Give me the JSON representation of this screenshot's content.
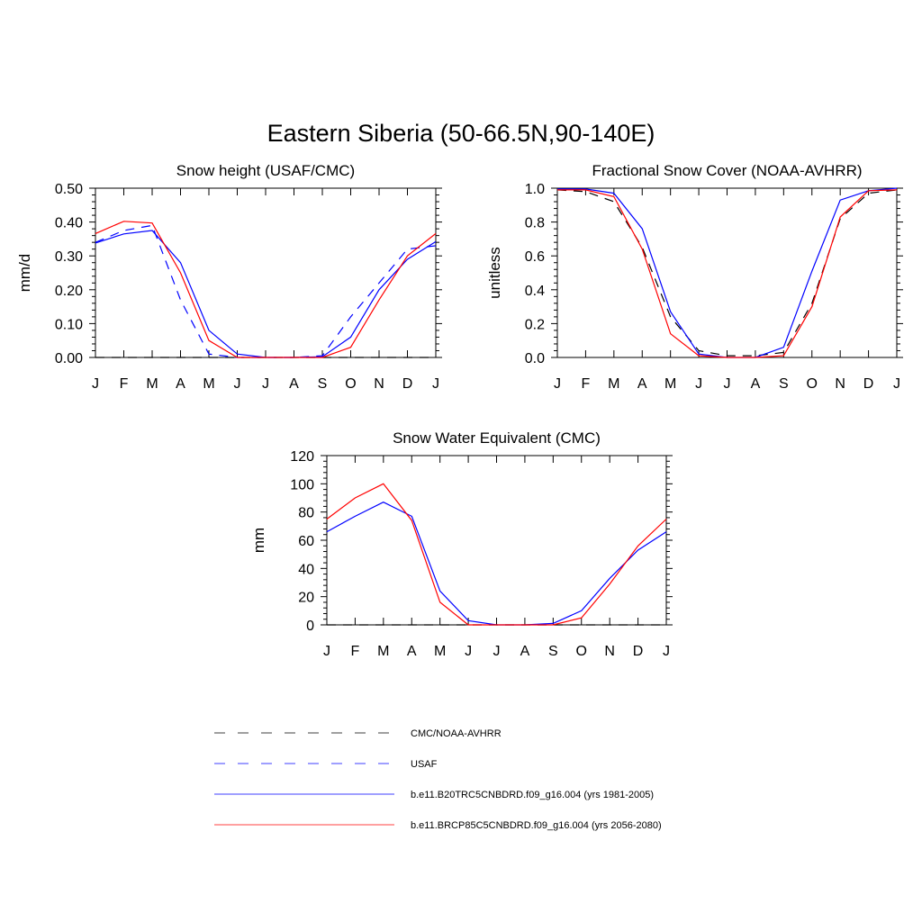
{
  "figure": {
    "title": "Eastern Siberia (50-66.5N,90-140E)"
  },
  "legend": [
    {
      "key": "cmc",
      "label": "CMC/NOAA-AVHRR",
      "color": "#000000",
      "dash": true
    },
    {
      "key": "usaf",
      "label": "USAF",
      "color": "#0000ff",
      "dash": true
    },
    {
      "key": "hist",
      "label": "b.e11.B20TRC5CNBDRD.f09_g16.004 (yrs 1981-2005)",
      "color": "#0000ff",
      "dash": false
    },
    {
      "key": "rcp",
      "label": "b.e11.BRCP85C5CNBDRD.f09_g16.004 (yrs 2056-2080)",
      "color": "#ff0000",
      "dash": false
    }
  ],
  "chart_data": [
    {
      "id": "snow-height",
      "type": "line",
      "title": "Snow height (USAF/CMC)",
      "ylabel": "mm/d",
      "xlabel": "",
      "categories": [
        "J",
        "F",
        "M",
        "A",
        "M",
        "J",
        "J",
        "A",
        "S",
        "O",
        "N",
        "D",
        "J"
      ],
      "ylim": [
        0,
        0.5
      ],
      "yticks": [
        "0.00",
        "0.10",
        "0.20",
        "0.30",
        "0.40",
        "0.50"
      ],
      "grid": false,
      "series": [
        {
          "name": "CMC/NOAA-AVHRR",
          "color": "#000000",
          "dash": true,
          "values": [
            0,
            0,
            0,
            0,
            0,
            0,
            0,
            0,
            0,
            0,
            0,
            0,
            0
          ]
        },
        {
          "name": "USAF",
          "color": "#0000ff",
          "dash": true,
          "values": [
            0.34,
            0.375,
            0.39,
            0.17,
            0.01,
            0,
            0,
            0,
            0.005,
            0.12,
            0.22,
            0.32,
            0.33
          ]
        },
        {
          "name": "b.e11.B20TRC5CNBDRD.f09_g16.004 (yrs 1981-2005)",
          "color": "#0000ff",
          "dash": false,
          "values": [
            0.338,
            0.365,
            0.375,
            0.28,
            0.08,
            0.01,
            0,
            0,
            0.002,
            0.06,
            0.2,
            0.29,
            0.342
          ]
        },
        {
          "name": "b.e11.BRCP85C5CNBDRD.f09_g16.004 (yrs 2056-2080)",
          "color": "#ff0000",
          "dash": false,
          "values": [
            0.366,
            0.402,
            0.397,
            0.25,
            0.05,
            0,
            0,
            0,
            0,
            0.03,
            0.17,
            0.3,
            0.366
          ]
        }
      ]
    },
    {
      "id": "snow-cover",
      "type": "line",
      "title": "Fractional Snow Cover (NOAA-AVHRR)",
      "ylabel": "unitless",
      "xlabel": "",
      "categories": [
        "J",
        "F",
        "M",
        "A",
        "M",
        "J",
        "J",
        "A",
        "S",
        "O",
        "N",
        "D",
        "J"
      ],
      "ylim": [
        0,
        1.0
      ],
      "yticks": [
        "0.0",
        "0.2",
        "0.4",
        "0.6",
        "0.8",
        "1.0"
      ],
      "grid": false,
      "series": [
        {
          "name": "CMC/NOAA-AVHRR",
          "color": "#000000",
          "dash": true,
          "values": [
            0.99,
            0.98,
            0.92,
            0.65,
            0.24,
            0.04,
            0.01,
            0.01,
            0.03,
            0.32,
            0.82,
            0.97,
            0.99
          ]
        },
        {
          "name": "b.e11.B20TRC5CNBDRD.f09_g16.004 (yrs 1981-2005)",
          "color": "#0000ff",
          "dash": false,
          "values": [
            0.995,
            0.995,
            0.97,
            0.76,
            0.27,
            0.02,
            0,
            0,
            0.06,
            0.51,
            0.93,
            0.985,
            1.0
          ]
        },
        {
          "name": "b.e11.BRCP85C5CNBDRD.f09_g16.004 (yrs 2056-2080)",
          "color": "#ff0000",
          "dash": false,
          "values": [
            0.99,
            0.99,
            0.95,
            0.64,
            0.14,
            0.01,
            0,
            0,
            0.01,
            0.3,
            0.83,
            0.985,
            0.99
          ]
        }
      ]
    },
    {
      "id": "swe",
      "type": "line",
      "title": "Snow Water Equivalent (CMC)",
      "ylabel": "mm",
      "xlabel": "",
      "categories": [
        "J",
        "F",
        "M",
        "A",
        "M",
        "J",
        "J",
        "A",
        "S",
        "O",
        "N",
        "D",
        "J"
      ],
      "ylim": [
        0,
        120
      ],
      "yticks": [
        "0",
        "20",
        "40",
        "60",
        "80",
        "100",
        "120"
      ],
      "grid": false,
      "series": [
        {
          "name": "CMC/NOAA-AVHRR",
          "color": "#000000",
          "dash": true,
          "values": [
            0,
            0,
            0,
            0,
            0,
            0,
            0,
            0,
            0,
            0,
            0,
            0,
            0
          ]
        },
        {
          "name": "b.e11.B20TRC5CNBDRD.f09_g16.004 (yrs 1981-2005)",
          "color": "#0000ff",
          "dash": false,
          "values": [
            66,
            77,
            87,
            77,
            24,
            3,
            0,
            0,
            1,
            10,
            33,
            53,
            66
          ]
        },
        {
          "name": "b.e11.BRCP85C5CNBDRD.f09_g16.004 (yrs 2056-2080)",
          "color": "#ff0000",
          "dash": false,
          "values": [
            75,
            90,
            100,
            74,
            16,
            0,
            0,
            0,
            0,
            5,
            29,
            56,
            75
          ]
        }
      ]
    }
  ]
}
